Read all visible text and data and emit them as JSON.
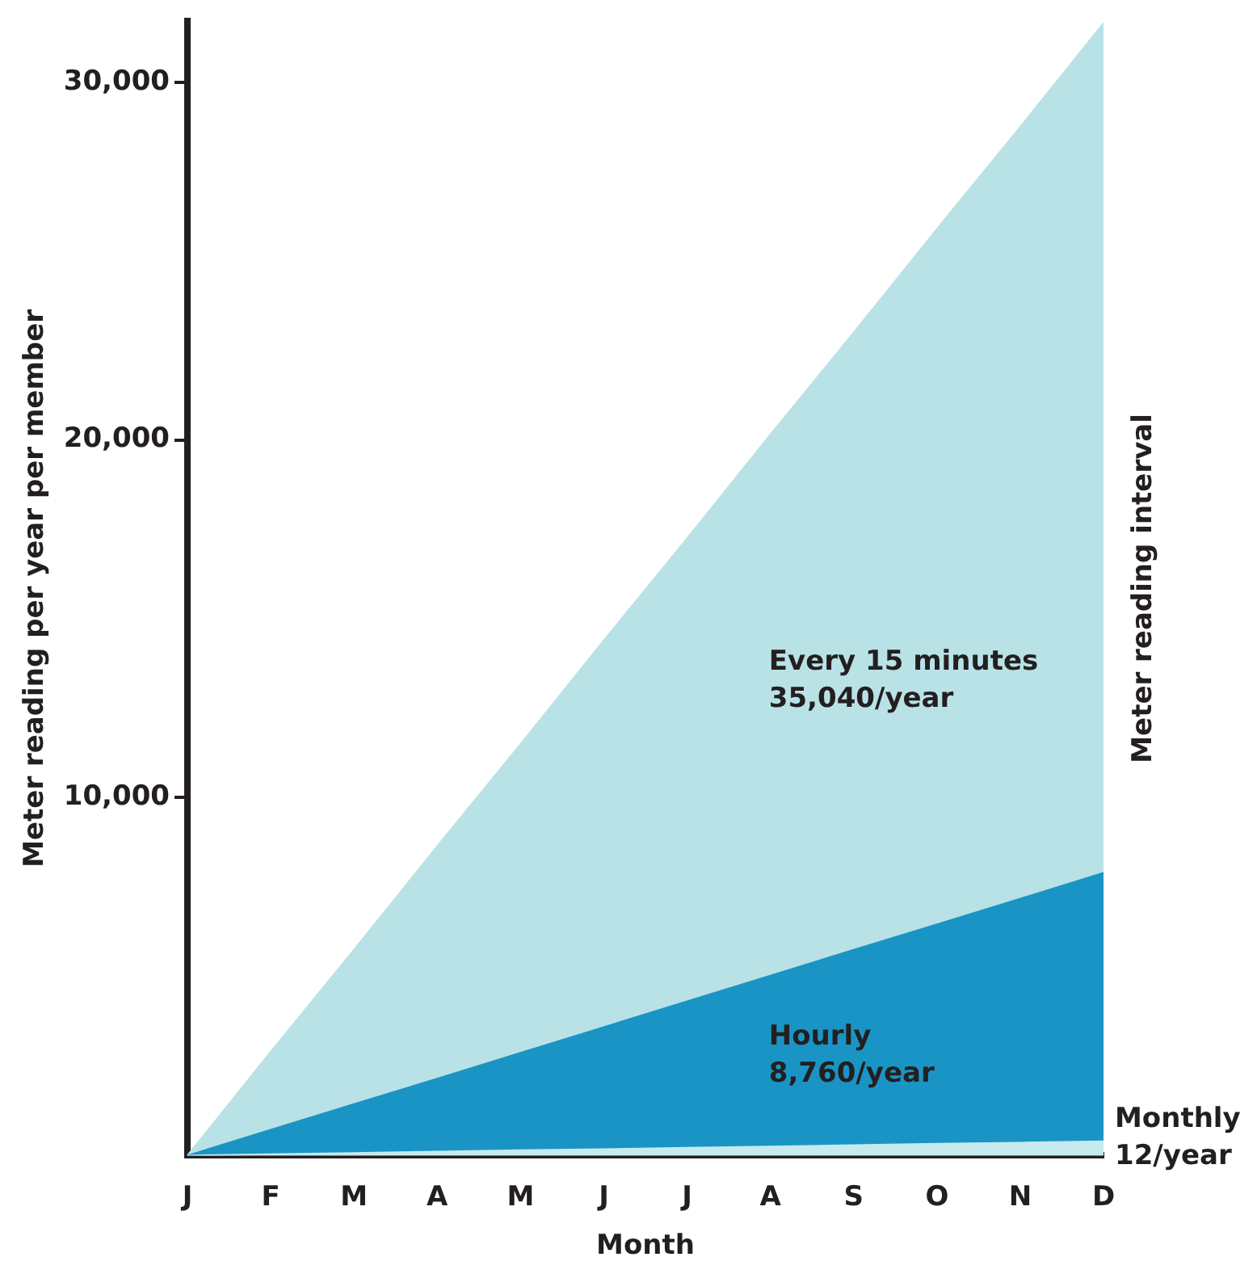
{
  "chart_data": {
    "type": "area",
    "xlabel": "Month",
    "ylabel": "Meter reading per year per member",
    "legend_title": "Meter reading interval",
    "categories": [
      "J",
      "F",
      "M",
      "A",
      "M",
      "J",
      "J",
      "A",
      "S",
      "O",
      "N",
      "D"
    ],
    "series": [
      {
        "name": "Every 15 minutes\n35,040/year",
        "color": "#b9e2e6",
        "values": [
          0,
          2900,
          5750,
          8650,
          11500,
          14400,
          17250,
          20150,
          23000,
          25900,
          28750,
          31650
        ]
      },
      {
        "name": "Hourly\n8,760/year",
        "color": "#1a94c4",
        "values": [
          0,
          720,
          1440,
          2150,
          2870,
          3590,
          4310,
          5030,
          5750,
          6460,
          7180,
          7900
        ]
      },
      {
        "name": "Monthly\n12/year",
        "color": "#c6eaee",
        "values": [
          0,
          40,
          70,
          110,
          150,
          180,
          220,
          250,
          290,
          330,
          360,
          400
        ]
      }
    ],
    "ylim": [
      0,
      31700
    ],
    "yticks": [
      {
        "value": 10000,
        "label": "10,000"
      },
      {
        "value": 20000,
        "label": "20,000"
      },
      {
        "value": 30000,
        "label": "30,000"
      }
    ],
    "grid": false,
    "legend": false
  }
}
